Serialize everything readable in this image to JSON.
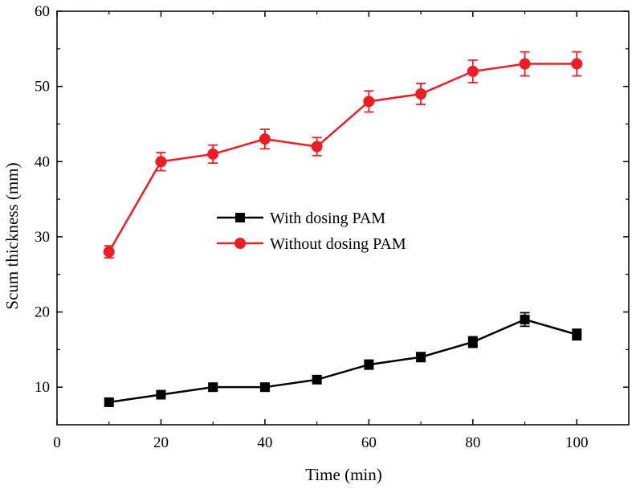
{
  "chart_data": {
    "type": "line",
    "title": "",
    "xlabel": "Time (min)",
    "ylabel": "Scum thickness (mm)",
    "xlim": [
      0,
      110
    ],
    "ylim": [
      5,
      60
    ],
    "x_ticks": [
      0,
      20,
      40,
      60,
      80,
      100
    ],
    "y_ticks": [
      10,
      20,
      30,
      40,
      50,
      60
    ],
    "grid": false,
    "legend_position": "center",
    "x": [
      10,
      20,
      30,
      40,
      50,
      60,
      70,
      80,
      90,
      100
    ],
    "series": [
      {
        "name": "With dosing PAM",
        "color": "#000000",
        "marker": "square",
        "values": [
          8,
          9,
          10,
          10,
          11,
          13,
          14,
          16,
          19,
          17
        ],
        "errors": [
          0.4,
          0.4,
          0.4,
          0.4,
          0.4,
          0.6,
          0.6,
          0.7,
          0.9,
          0.7
        ]
      },
      {
        "name": "Without dosing PAM",
        "color": "#ee1c24",
        "marker": "circle",
        "values": [
          28,
          40,
          41,
          43,
          42,
          48,
          49,
          52,
          53,
          53
        ],
        "errors": [
          0.8,
          1.2,
          1.2,
          1.3,
          1.2,
          1.4,
          1.4,
          1.5,
          1.6,
          1.6
        ]
      }
    ]
  }
}
